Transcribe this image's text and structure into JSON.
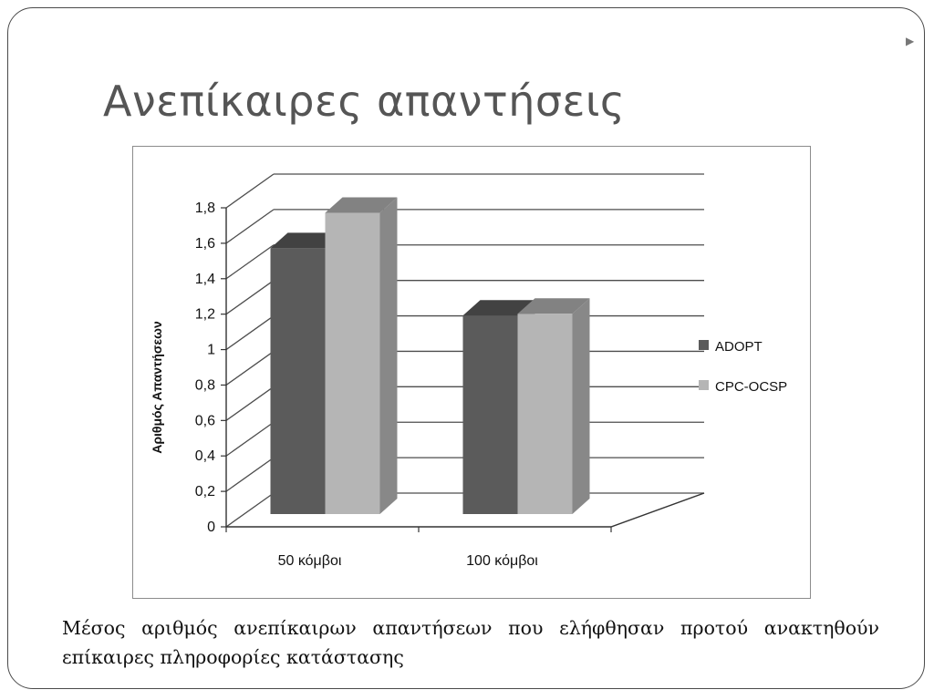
{
  "slide": {
    "title": "Ανεπίκαιρες απαντήσεις",
    "caption": "Μέσος αριθμός ανεπίκαιρων απαντήσεων που ελήφθησαν προτού ανακτηθούν επίκαιρες πληροφορίες κατάστασης",
    "bullet_icon": "▶"
  },
  "chart_data": {
    "type": "bar",
    "style": "3d-clustered-column",
    "title": "",
    "xlabel": "",
    "ylabel": "Αριθμός Απαντήσεων",
    "categories": [
      "50 κόμβοι",
      "100 κόμβοι"
    ],
    "series": [
      {
        "name": "ADOPT",
        "values": [
          1.5,
          1.12
        ],
        "color": "#5b5b5b"
      },
      {
        "name": "CPC-OCSP",
        "values": [
          1.7,
          1.13
        ],
        "color": "#b5b5b5"
      }
    ],
    "ylim": [
      0,
      1.8
    ],
    "yticks": [
      "0",
      "0,2",
      "0,4",
      "0,6",
      "0,8",
      "1",
      "1,2",
      "1,4",
      "1,6",
      "1,8"
    ],
    "grid": true,
    "legend_position": "right"
  }
}
